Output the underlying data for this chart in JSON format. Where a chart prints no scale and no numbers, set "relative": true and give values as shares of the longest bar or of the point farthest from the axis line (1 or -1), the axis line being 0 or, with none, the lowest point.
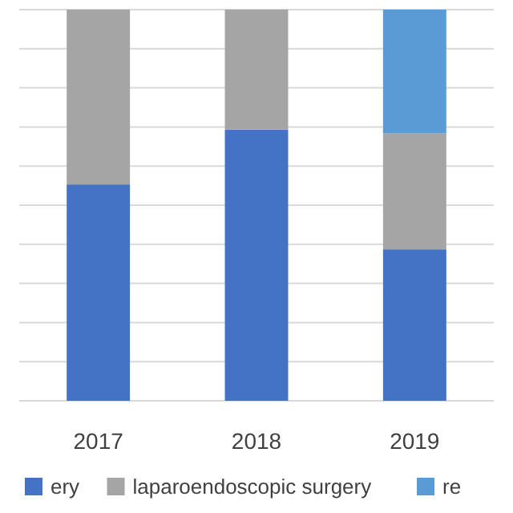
{
  "chart_data": {
    "type": "bar",
    "stacked": true,
    "relative": true,
    "categories": [
      "2017",
      "2018",
      "2019"
    ],
    "series": [
      {
        "name": "ery",
        "color": "#4472c4",
        "values": [
          0.553,
          0.693,
          0.387
        ]
      },
      {
        "name": "laparoendoscopic surgery",
        "color": "#a5a5a5",
        "values": [
          0.447,
          0.307,
          0.297
        ]
      },
      {
        "name": "re",
        "color": "#5b9bd5",
        "values": [
          0,
          0,
          0.316
        ]
      }
    ],
    "grid": "y",
    "legend": "bottom"
  }
}
